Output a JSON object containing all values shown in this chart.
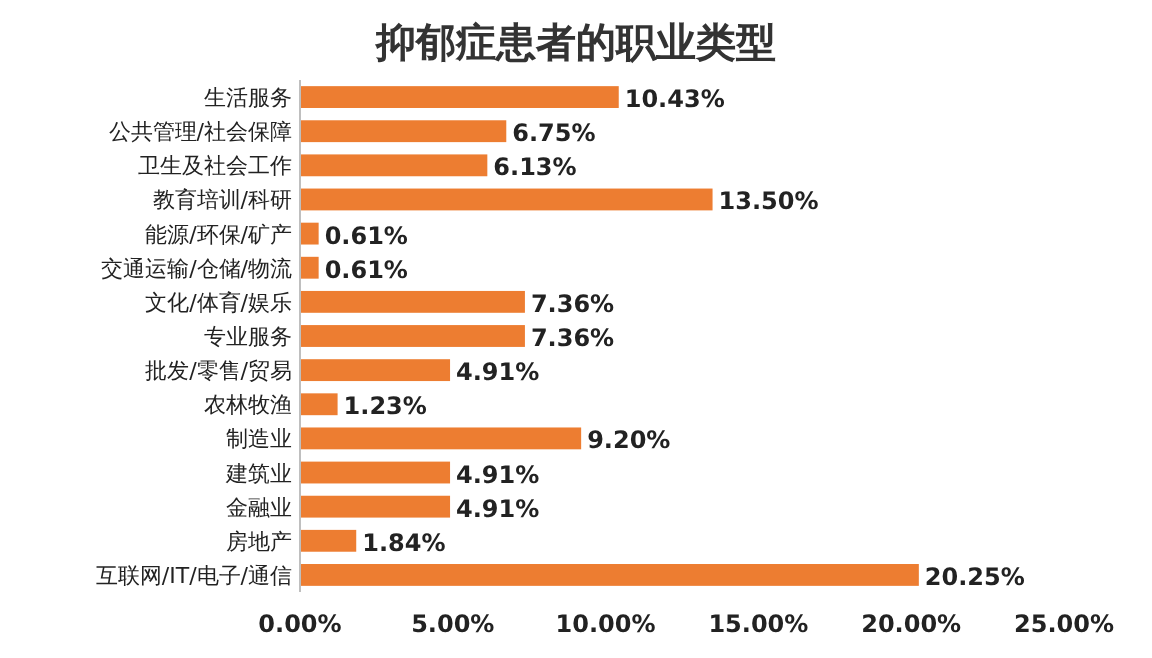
{
  "chart_data": {
    "type": "bar",
    "title": "抑郁症患者的职业类型",
    "orientation": "horizontal",
    "categories": [
      "生活服务",
      "公共管理/社会保障",
      "卫生及社会工作",
      "教育培训/科研",
      "能源/环保/矿产",
      "交通运输/仓储/物流",
      "文化/体育/娱乐",
      "专业服务",
      "批发/零售/贸易",
      "农林牧渔",
      "制造业",
      "建筑业",
      "金融业",
      "房地产",
      "互联网/IT/电子/通信"
    ],
    "values": [
      10.43,
      6.75,
      6.13,
      13.5,
      0.61,
      0.61,
      7.36,
      7.36,
      4.91,
      1.23,
      9.2,
      4.91,
      4.91,
      1.84,
      20.25
    ],
    "value_labels": [
      "10.43%",
      "6.75%",
      "6.13%",
      "13.50%",
      "0.61%",
      "0.61%",
      "7.36%",
      "7.36%",
      "4.91%",
      "1.23%",
      "9.20%",
      "4.91%",
      "4.91%",
      "1.84%",
      "20.25%"
    ],
    "color": "#ed7d31",
    "xlim": [
      0,
      25
    ],
    "xticks": [
      {
        "value": 0,
        "label": "0.00%"
      },
      {
        "value": 5,
        "label": "5.00%"
      },
      {
        "value": 10,
        "label": "10.00%"
      },
      {
        "value": 15,
        "label": "15.00%"
      },
      {
        "value": 20,
        "label": "20.00%"
      },
      {
        "value": 25,
        "label": "25.00%"
      }
    ],
    "grid": false
  }
}
